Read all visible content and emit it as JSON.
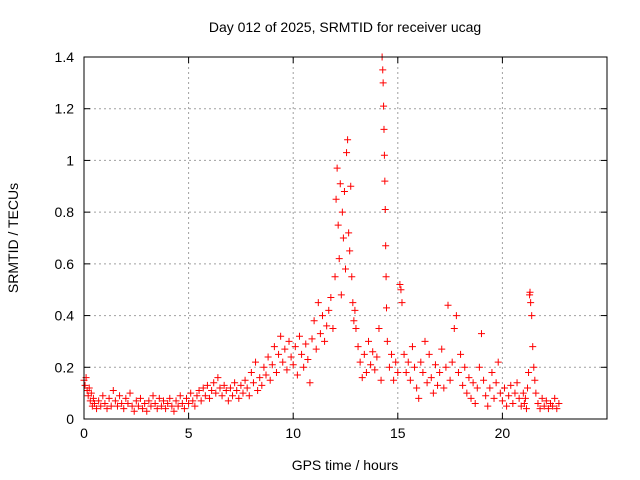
{
  "chart_data": {
    "type": "scatter",
    "title": "Day 012 of 2025, SRMTID for receiver ucag",
    "xlabel": "GPS time / hours",
    "ylabel": "SRMTID / TECUs",
    "xlim": [
      0,
      25
    ],
    "ylim": [
      0,
      1.4
    ],
    "xticks": [
      0,
      5,
      10,
      15,
      20
    ],
    "xtick_labels": [
      "0",
      "5",
      "10",
      "15",
      "20"
    ],
    "yticks": [
      0,
      0.2,
      0.4,
      0.6,
      0.8,
      1,
      1.2,
      1.4
    ],
    "ytick_labels": [
      "0",
      "0.2",
      "0.4",
      "0.6",
      "0.8",
      "1",
      "1.2",
      "1.4"
    ],
    "grid": true,
    "marker": "+",
    "marker_color": "#ff0000",
    "series": [
      {
        "name": "SRMTID",
        "points": [
          [
            0.0,
            0.15
          ],
          [
            0.05,
            0.13
          ],
          [
            0.1,
            0.16
          ],
          [
            0.15,
            0.11
          ],
          [
            0.2,
            0.09
          ],
          [
            0.25,
            0.12
          ],
          [
            0.3,
            0.07
          ],
          [
            0.35,
            0.1
          ],
          [
            0.4,
            0.05
          ],
          [
            0.45,
            0.08
          ],
          [
            0.5,
            0.06
          ],
          [
            0.6,
            0.04
          ],
          [
            0.7,
            0.07
          ],
          [
            0.8,
            0.05
          ],
          [
            0.9,
            0.09
          ],
          [
            1.0,
            0.06
          ],
          [
            1.1,
            0.04
          ],
          [
            1.2,
            0.08
          ],
          [
            1.3,
            0.05
          ],
          [
            1.4,
            0.11
          ],
          [
            1.5,
            0.07
          ],
          [
            1.6,
            0.05
          ],
          [
            1.7,
            0.09
          ],
          [
            1.8,
            0.06
          ],
          [
            1.9,
            0.04
          ],
          [
            2.0,
            0.08
          ],
          [
            2.1,
            0.06
          ],
          [
            2.2,
            0.1
          ],
          [
            2.3,
            0.05
          ],
          [
            2.4,
            0.03
          ],
          [
            2.5,
            0.07
          ],
          [
            2.6,
            0.05
          ],
          [
            2.7,
            0.08
          ],
          [
            2.8,
            0.04
          ],
          [
            2.9,
            0.06
          ],
          [
            3.0,
            0.03
          ],
          [
            3.1,
            0.07
          ],
          [
            3.2,
            0.05
          ],
          [
            3.3,
            0.09
          ],
          [
            3.4,
            0.06
          ],
          [
            3.5,
            0.04
          ],
          [
            3.6,
            0.08
          ],
          [
            3.7,
            0.05
          ],
          [
            3.8,
            0.07
          ],
          [
            3.9,
            0.04
          ],
          [
            4.0,
            0.06
          ],
          [
            4.1,
            0.08
          ],
          [
            4.2,
            0.05
          ],
          [
            4.3,
            0.03
          ],
          [
            4.4,
            0.07
          ],
          [
            4.5,
            0.05
          ],
          [
            4.6,
            0.09
          ],
          [
            4.7,
            0.06
          ],
          [
            4.8,
            0.04
          ],
          [
            4.9,
            0.08
          ],
          [
            5.0,
            0.06
          ],
          [
            5.1,
            0.1
          ],
          [
            5.2,
            0.07
          ],
          [
            5.3,
            0.05
          ],
          [
            5.4,
            0.09
          ],
          [
            5.5,
            0.11
          ],
          [
            5.6,
            0.07
          ],
          [
            5.7,
            0.12
          ],
          [
            5.8,
            0.09
          ],
          [
            5.9,
            0.13
          ],
          [
            6.0,
            0.08
          ],
          [
            6.1,
            0.11
          ],
          [
            6.2,
            0.14
          ],
          [
            6.3,
            0.1
          ],
          [
            6.4,
            0.16
          ],
          [
            6.5,
            0.12
          ],
          [
            6.6,
            0.09
          ],
          [
            6.7,
            0.13
          ],
          [
            6.8,
            0.11
          ],
          [
            6.9,
            0.07
          ],
          [
            7.0,
            0.12
          ],
          [
            7.1,
            0.09
          ],
          [
            7.2,
            0.14
          ],
          [
            7.3,
            0.11
          ],
          [
            7.4,
            0.08
          ],
          [
            7.5,
            0.13
          ],
          [
            7.6,
            0.1
          ],
          [
            7.7,
            0.15
          ],
          [
            7.8,
            0.12
          ],
          [
            7.9,
            0.09
          ],
          [
            8.0,
            0.18
          ],
          [
            8.1,
            0.14
          ],
          [
            8.2,
            0.22
          ],
          [
            8.3,
            0.11
          ],
          [
            8.4,
            0.16
          ],
          [
            8.5,
            0.13
          ],
          [
            8.6,
            0.2
          ],
          [
            8.7,
            0.17
          ],
          [
            8.8,
            0.24
          ],
          [
            8.9,
            0.15
          ],
          [
            9.0,
            0.21
          ],
          [
            9.1,
            0.28
          ],
          [
            9.2,
            0.18
          ],
          [
            9.3,
            0.25
          ],
          [
            9.4,
            0.32
          ],
          [
            9.5,
            0.22
          ],
          [
            9.6,
            0.27
          ],
          [
            9.7,
            0.19
          ],
          [
            9.8,
            0.3
          ],
          [
            9.9,
            0.24
          ],
          [
            10.0,
            0.21
          ],
          [
            10.1,
            0.28
          ],
          [
            10.2,
            0.17
          ],
          [
            10.3,
            0.32
          ],
          [
            10.4,
            0.25
          ],
          [
            10.5,
            0.2
          ],
          [
            10.6,
            0.29
          ],
          [
            10.7,
            0.23
          ],
          [
            10.8,
            0.14
          ],
          [
            10.9,
            0.31
          ],
          [
            11.0,
            0.38
          ],
          [
            11.1,
            0.27
          ],
          [
            11.2,
            0.45
          ],
          [
            11.3,
            0.33
          ],
          [
            11.4,
            0.4
          ],
          [
            11.5,
            0.3
          ],
          [
            11.6,
            0.36
          ],
          [
            11.7,
            0.42
          ],
          [
            11.8,
            0.47
          ],
          [
            11.9,
            0.35
          ],
          [
            12.0,
            0.55
          ],
          [
            12.05,
            0.85
          ],
          [
            12.1,
            0.97
          ],
          [
            12.15,
            0.75
          ],
          [
            12.2,
            0.62
          ],
          [
            12.25,
            0.91
          ],
          [
            12.3,
            0.48
          ],
          [
            12.35,
            0.8
          ],
          [
            12.4,
            0.7
          ],
          [
            12.45,
            0.88
          ],
          [
            12.5,
            0.58
          ],
          [
            12.55,
            1.03
          ],
          [
            12.6,
            1.08
          ],
          [
            12.65,
            0.72
          ],
          [
            12.7,
            0.65
          ],
          [
            12.75,
            0.9
          ],
          [
            12.8,
            0.55
          ],
          [
            12.85,
            0.45
          ],
          [
            12.9,
            0.38
          ],
          [
            12.95,
            0.42
          ],
          [
            13.0,
            0.35
          ],
          [
            13.1,
            0.28
          ],
          [
            13.2,
            0.22
          ],
          [
            13.3,
            0.16
          ],
          [
            13.4,
            0.25
          ],
          [
            13.5,
            0.18
          ],
          [
            13.6,
            0.3
          ],
          [
            13.7,
            0.21
          ],
          [
            13.8,
            0.26
          ],
          [
            13.9,
            0.19
          ],
          [
            14.0,
            0.24
          ],
          [
            14.1,
            0.35
          ],
          [
            14.2,
            0.15
          ],
          [
            14.25,
            1.4
          ],
          [
            14.28,
            1.35
          ],
          [
            14.3,
            1.3
          ],
          [
            14.32,
            1.21
          ],
          [
            14.34,
            1.12
          ],
          [
            14.36,
            1.02
          ],
          [
            14.38,
            0.92
          ],
          [
            14.4,
            0.81
          ],
          [
            14.42,
            0.67
          ],
          [
            14.44,
            0.55
          ],
          [
            14.46,
            0.43
          ],
          [
            14.5,
            0.3
          ],
          [
            14.6,
            0.2
          ],
          [
            14.7,
            0.25
          ],
          [
            14.8,
            0.15
          ],
          [
            14.9,
            0.22
          ],
          [
            15.0,
            0.18
          ],
          [
            15.1,
            0.52
          ],
          [
            15.15,
            0.5
          ],
          [
            15.2,
            0.45
          ],
          [
            15.3,
            0.25
          ],
          [
            15.4,
            0.18
          ],
          [
            15.5,
            0.22
          ],
          [
            15.6,
            0.15
          ],
          [
            15.7,
            0.28
          ],
          [
            15.8,
            0.2
          ],
          [
            15.9,
            0.12
          ],
          [
            16.0,
            0.08
          ],
          [
            16.1,
            0.22
          ],
          [
            16.2,
            0.18
          ],
          [
            16.3,
            0.3
          ],
          [
            16.4,
            0.14
          ],
          [
            16.5,
            0.25
          ],
          [
            16.6,
            0.16
          ],
          [
            16.7,
            0.1
          ],
          [
            16.8,
            0.21
          ],
          [
            16.9,
            0.13
          ],
          [
            17.0,
            0.18
          ],
          [
            17.1,
            0.27
          ],
          [
            17.2,
            0.12
          ],
          [
            17.3,
            0.2
          ],
          [
            17.4,
            0.44
          ],
          [
            17.5,
            0.15
          ],
          [
            17.6,
            0.22
          ],
          [
            17.7,
            0.35
          ],
          [
            17.8,
            0.4
          ],
          [
            17.9,
            0.18
          ],
          [
            18.0,
            0.25
          ],
          [
            18.1,
            0.13
          ],
          [
            18.2,
            0.2
          ],
          [
            18.3,
            0.1
          ],
          [
            18.4,
            0.16
          ],
          [
            18.5,
            0.08
          ],
          [
            18.6,
            0.14
          ],
          [
            18.7,
            0.06
          ],
          [
            18.8,
            0.12
          ],
          [
            18.9,
            0.2
          ],
          [
            19.0,
            0.33
          ],
          [
            19.1,
            0.15
          ],
          [
            19.2,
            0.09
          ],
          [
            19.3,
            0.05
          ],
          [
            19.4,
            0.12
          ],
          [
            19.5,
            0.18
          ],
          [
            19.6,
            0.08
          ],
          [
            19.7,
            0.14
          ],
          [
            19.8,
            0.22
          ],
          [
            19.9,
            0.1
          ],
          [
            20.0,
            0.07
          ],
          [
            20.1,
            0.12
          ],
          [
            20.2,
            0.05
          ],
          [
            20.3,
            0.09
          ],
          [
            20.4,
            0.13
          ],
          [
            20.5,
            0.06
          ],
          [
            20.6,
            0.1
          ],
          [
            20.7,
            0.14
          ],
          [
            20.8,
            0.08
          ],
          [
            20.9,
            0.05
          ],
          [
            21.0,
            0.1
          ],
          [
            21.05,
            0.06
          ],
          [
            21.1,
            0.08
          ],
          [
            21.15,
            0.04
          ],
          [
            21.2,
            0.12
          ],
          [
            21.25,
            0.18
          ],
          [
            21.3,
            0.48
          ],
          [
            21.32,
            0.49
          ],
          [
            21.35,
            0.45
          ],
          [
            21.4,
            0.4
          ],
          [
            21.45,
            0.28
          ],
          [
            21.5,
            0.2
          ],
          [
            21.55,
            0.15
          ],
          [
            21.6,
            0.1
          ],
          [
            21.7,
            0.06
          ],
          [
            21.8,
            0.04
          ],
          [
            21.9,
            0.08
          ],
          [
            22.0,
            0.05
          ],
          [
            22.1,
            0.07
          ],
          [
            22.2,
            0.04
          ],
          [
            22.3,
            0.06
          ],
          [
            22.4,
            0.05
          ],
          [
            22.5,
            0.08
          ],
          [
            22.6,
            0.04
          ],
          [
            22.7,
            0.06
          ]
        ]
      }
    ]
  }
}
